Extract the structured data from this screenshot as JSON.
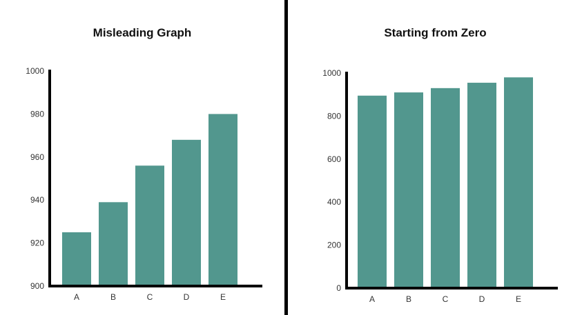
{
  "colors": {
    "bar": "#52978e",
    "axis": "#000000",
    "divider": "#000000"
  },
  "chart_data": [
    {
      "type": "bar",
      "title": "Misleading Graph",
      "categories": [
        "A",
        "B",
        "C",
        "D",
        "E"
      ],
      "values": [
        925,
        939,
        956,
        968,
        980
      ],
      "ylim": [
        900,
        1000
      ],
      "yticks": [
        900,
        920,
        940,
        960,
        980,
        1000
      ],
      "xlabel": "",
      "ylabel": "",
      "grid": false,
      "legend": "none"
    },
    {
      "type": "bar",
      "title": "Starting from Zero",
      "categories": [
        "A",
        "B",
        "C",
        "D",
        "E"
      ],
      "values": [
        895,
        910,
        930,
        955,
        980
      ],
      "ylim": [
        0,
        1000
      ],
      "yticks": [
        0,
        200,
        400,
        600,
        800,
        1000
      ],
      "xlabel": "",
      "ylabel": "",
      "grid": false,
      "legend": "none"
    }
  ]
}
